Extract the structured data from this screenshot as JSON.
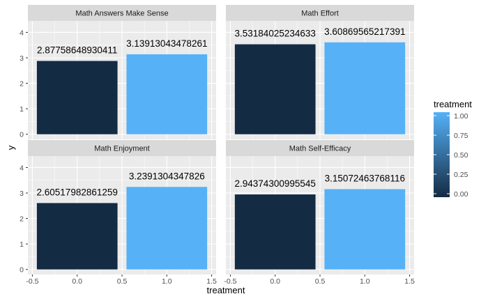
{
  "chart_data": {
    "type": "bar",
    "facets": [
      {
        "title": "Math Answers Make Sense",
        "x": [
          0,
          1
        ],
        "values": [
          2.87758648930411,
          3.13913043478261
        ],
        "labels": [
          "2.87758648930411",
          "3.13913043478261"
        ]
      },
      {
        "title": "Math Effort",
        "x": [
          0,
          1
        ],
        "values": [
          3.53184025234633,
          3.60869565217391
        ],
        "labels": [
          "3.53184025234633",
          "3.60869565217391"
        ]
      },
      {
        "title": "Math Enjoyment",
        "x": [
          0,
          1
        ],
        "values": [
          2.60517982861259,
          3.2391304347826
        ],
        "labels": [
          "2.60517982861259",
          "3.2391304347826"
        ]
      },
      {
        "title": "Math Self-Efficacy",
        "x": [
          0,
          1
        ],
        "values": [
          2.94374300995545,
          3.15072463768116
        ],
        "labels": [
          "2.94374300995545",
          "3.15072463768116"
        ]
      }
    ],
    "xlabel": "treatment",
    "ylabel": "y",
    "xlim": [
      -0.55,
      1.55
    ],
    "ylim": [
      -0.2,
      4.45
    ],
    "x_ticks": [
      "-0.5",
      "0.0",
      "0.5",
      "1.0",
      "1.5"
    ],
    "y_ticks": [
      "0",
      "1",
      "2",
      "3",
      "4"
    ],
    "legend": {
      "title": "treatment",
      "placement": "right",
      "labels": [
        "1.00",
        "0.75",
        "0.50",
        "0.25",
        "0.00"
      ],
      "color_low": "#132B43",
      "color_high": "#56B1F7"
    },
    "grid": true,
    "panel_background": "#EBEBEB",
    "strip_background": "#D9D9D9"
  }
}
